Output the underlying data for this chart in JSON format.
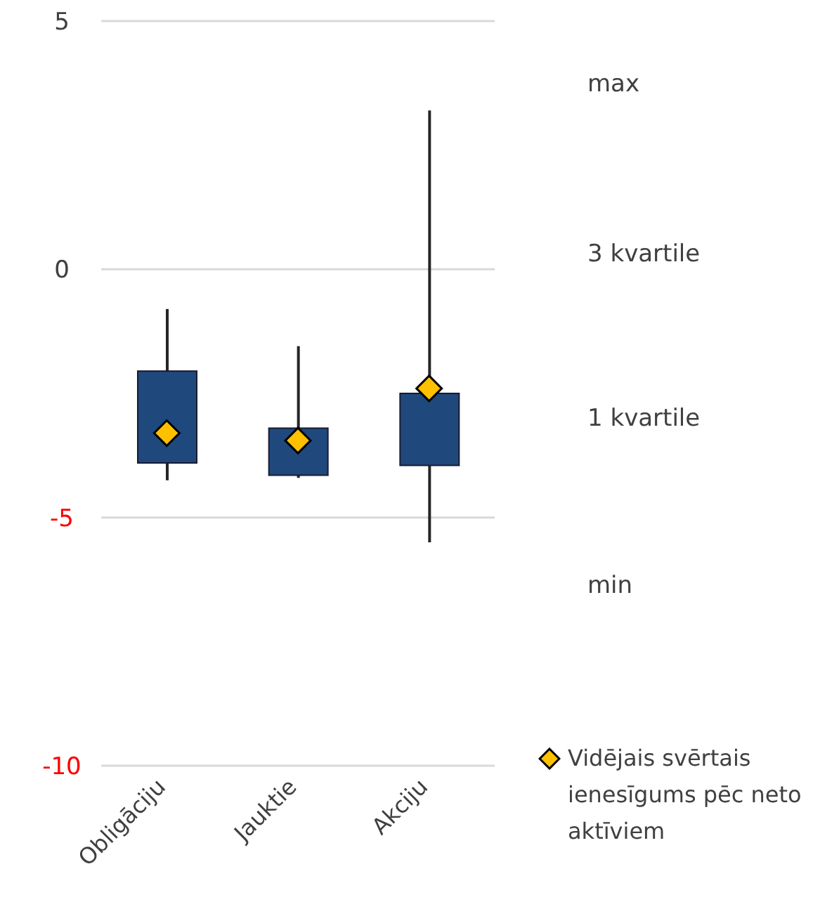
{
  "chart_data": {
    "type": "box",
    "categories": [
      "Obligāciju",
      "Jauktie",
      "Akciju"
    ],
    "series": [
      {
        "color": "#1f497d",
        "boxes": [
          {
            "low": -4.25,
            "q1": -3.9,
            "q3": -2.05,
            "high": -0.8
          },
          {
            "low": -4.2,
            "q1": -4.15,
            "q3": -3.2,
            "high": -1.55
          },
          {
            "low": -5.5,
            "q1": -3.95,
            "q3": -2.5,
            "high": 3.2
          }
        ]
      },
      {
        "type": "scatter",
        "name": "Vidējais svērtais ienesīgums pēc neto aktīviem",
        "color": "#ffc000",
        "x": [
          "Obligāciju",
          "Jauktie",
          "Akciju"
        ],
        "values": [
          -3.3,
          -3.45,
          -2.4
        ],
        "marker": "diamond"
      }
    ],
    "ylim": [
      -10,
      5
    ],
    "yticks": [
      -10,
      -5,
      0,
      5
    ],
    "grid": "y",
    "legend": "right",
    "annotations": [
      "max",
      "3 kvartile",
      "1 kvartile",
      "min"
    ]
  }
}
